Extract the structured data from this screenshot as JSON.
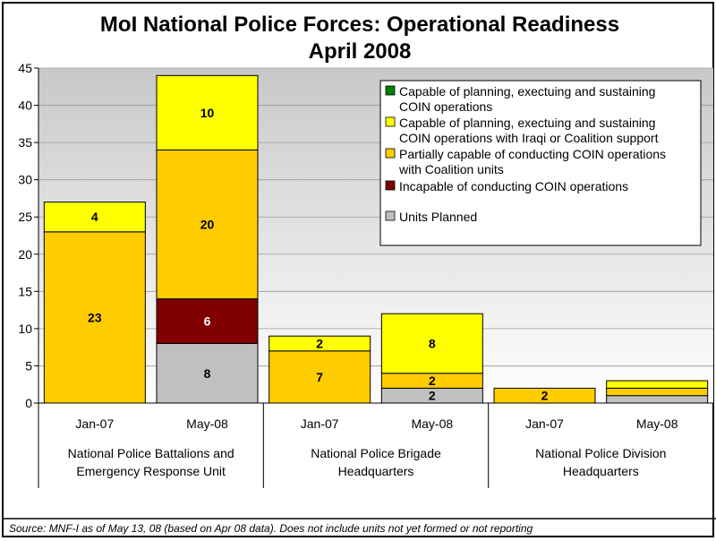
{
  "chart_data": {
    "type": "bar",
    "stacked": true,
    "title_lines": [
      "MoI National Police Forces:  Operational Readiness",
      "April 2008"
    ],
    "ylim": [
      0,
      45
    ],
    "yticks": [
      0,
      5,
      10,
      15,
      20,
      25,
      30,
      35,
      40,
      45
    ],
    "categories": [
      "Jan-07",
      "May-08",
      "Jan-07",
      "May-08",
      "Jan-07",
      "May-08"
    ],
    "groups": [
      {
        "label_lines": [
          "National Police Battalions and",
          "Emergency Response Unit"
        ],
        "bars": [
          0,
          1
        ]
      },
      {
        "label_lines": [
          "National Police Brigade",
          "Headquarters"
        ],
        "bars": [
          2,
          3
        ]
      },
      {
        "label_lines": [
          "National Police Division",
          "Headquarters"
        ],
        "bars": [
          4,
          5
        ]
      }
    ],
    "series": [
      {
        "name": "Units Planned",
        "color": "#C0C0C0",
        "label_color": "#000000",
        "values": [
          0,
          8,
          0,
          2,
          0,
          1
        ]
      },
      {
        "name": "Incapable of conducting COIN operations",
        "color": "#800000",
        "label_color": "#ffffff",
        "values": [
          0,
          6,
          0,
          0,
          0,
          0
        ]
      },
      {
        "name": "Partially capable of conducting COIN operations with Coalition units",
        "color": "#FFCC00",
        "label_color": "#000000",
        "values": [
          23,
          20,
          7,
          2,
          2,
          1
        ]
      },
      {
        "name": "Capable of planning, exectuing and sustaining COIN operations with Iraqi or Coalition support",
        "color": "#FFFF00",
        "label_color": "#000000",
        "values": [
          4,
          10,
          2,
          8,
          0,
          1
        ]
      },
      {
        "name": "Capable of planning, exectuing and sustaining COIN operations",
        "color": "#008000",
        "label_color": "#000000",
        "values": [
          0,
          0,
          0,
          0,
          0,
          0
        ]
      }
    ],
    "data_labels": [
      {
        "bar": 0,
        "series": 2,
        "text": "23"
      },
      {
        "bar": 0,
        "series": 3,
        "text": "4"
      },
      {
        "bar": 1,
        "series": 0,
        "text": "8"
      },
      {
        "bar": 1,
        "series": 1,
        "text": "6"
      },
      {
        "bar": 1,
        "series": 2,
        "text": "20"
      },
      {
        "bar": 1,
        "series": 3,
        "text": "10"
      },
      {
        "bar": 2,
        "series": 2,
        "text": "7"
      },
      {
        "bar": 2,
        "series": 3,
        "text": "2"
      },
      {
        "bar": 3,
        "series": 0,
        "text": "2"
      },
      {
        "bar": 3,
        "series": 2,
        "text": "2"
      },
      {
        "bar": 3,
        "series": 3,
        "text": "8"
      },
      {
        "bar": 4,
        "series": 2,
        "text": "2"
      }
    ],
    "legend": {
      "placement": "top-right",
      "entries": [
        {
          "color": "#008000",
          "lines": [
            "Capable of planning, exectuing and sustaining",
            "COIN operations"
          ]
        },
        {
          "color": "#FFFF00",
          "lines": [
            "Capable of planning, exectuing and sustaining",
            "COIN operations with Iraqi or Coalition support"
          ]
        },
        {
          "color": "#FFCC00",
          "lines": [
            "Partially capable of conducting COIN operations",
            "with Coalition units"
          ]
        },
        {
          "color": "#800000",
          "lines": [
            " Incapable of conducting COIN operations"
          ]
        },
        {
          "color": "#C0C0C0",
          "lines": [
            "Units Planned"
          ]
        }
      ]
    },
    "grid": true,
    "plot_background": "gradient-gray"
  },
  "footer": {
    "source": "Source:  MNF-I as of May 13, 08 (based on Apr 08 data).  Does not include units not yet formed or not reporting"
  }
}
